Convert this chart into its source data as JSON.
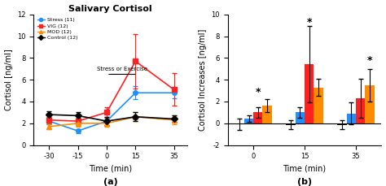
{
  "title_a": "Salivary Cortisol",
  "xlabel_a": "Time (min)",
  "ylabel_a": "Cortisol [ng/ml]",
  "xlabel_b": "Time (min)",
  "ylabel_b": "Cortisol Increases [ng/ml]",
  "label_a": "(a)",
  "label_b": "(b)",
  "annotation": "Stress or Exercise",
  "time_points": [
    -30,
    -15,
    0,
    15,
    35
  ],
  "stress_vals": [
    2.2,
    1.3,
    2.2,
    4.8,
    4.8
  ],
  "stress_err": [
    0.3,
    0.2,
    0.4,
    0.6,
    0.5
  ],
  "vig_vals": [
    2.3,
    2.2,
    3.0,
    7.7,
    5.1
  ],
  "vig_err": [
    0.3,
    0.3,
    0.5,
    2.5,
    1.5
  ],
  "mod_vals": [
    1.7,
    2.0,
    2.0,
    2.6,
    2.3
  ],
  "mod_err": [
    0.2,
    0.3,
    0.3,
    0.4,
    0.4
  ],
  "ctrl_vals": [
    2.8,
    2.7,
    2.2,
    2.6,
    2.4
  ],
  "ctrl_err": [
    0.3,
    0.3,
    0.4,
    0.4,
    0.3
  ],
  "stress_color": "#1E90FF",
  "vig_color": "#FF2020",
  "mod_color": "#FF8C00",
  "ctrl_color": "#000000",
  "legend_labels": [
    "Stress (11)",
    "VIG (12)",
    "MOD (12)",
    "Control (12)"
  ],
  "bar_times": [
    0,
    15,
    35
  ],
  "ctrl_bar": [
    -0.1,
    -0.15,
    -0.15
  ],
  "ctrl_bar_err": [
    0.5,
    0.4,
    0.4
  ],
  "stress_bar": [
    0.4,
    1.0,
    0.9
  ],
  "stress_bar_err": [
    0.3,
    0.5,
    1.0
  ],
  "vig_bar": [
    1.0,
    5.4,
    2.3
  ],
  "vig_bar_err": [
    0.5,
    3.5,
    1.8
  ],
  "mod_bar": [
    1.65,
    3.3,
    3.5
  ],
  "mod_bar_err": [
    0.6,
    0.8,
    1.5
  ],
  "ylim_a": [
    0,
    12
  ],
  "ylim_b": [
    -2,
    10
  ],
  "yticks_a": [
    0,
    2,
    4,
    6,
    8,
    10,
    12
  ],
  "yticks_b": [
    -2,
    0,
    2,
    4,
    6,
    8,
    10
  ]
}
